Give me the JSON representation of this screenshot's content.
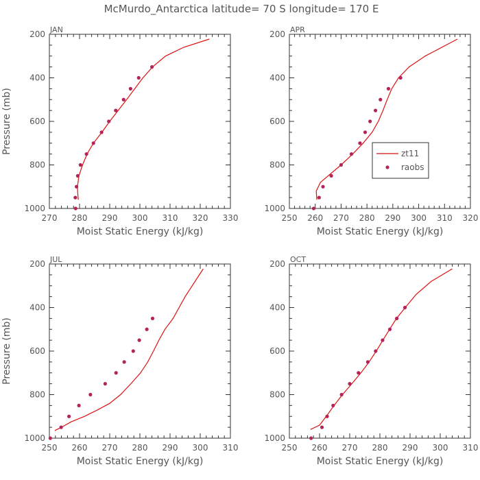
{
  "title": "McMurdo_Antarctica   latitude= 70 S longitude= 170 E",
  "colors": {
    "model_line": "#dd1111",
    "raob_points": "#b3245a",
    "axes": "#333333",
    "text": "#555555"
  },
  "legend": {
    "model": "zt11",
    "obs": "raobs",
    "placement": "right-middle of APR panel"
  },
  "chart_data": [
    {
      "type": "line",
      "panel": "JAN",
      "xlabel": "Moist Static Energy (kJ/kg)",
      "ylabel": "Pressure (mb)",
      "xlim": [
        270,
        330
      ],
      "xticks": [
        270,
        280,
        290,
        300,
        310,
        320,
        330
      ],
      "ylim": [
        1000,
        200
      ],
      "yticks": [
        200,
        400,
        600,
        800,
        1000
      ],
      "series": [
        {
          "name": "zt11",
          "x": [
            279.6,
            279.4,
            279.3,
            279.8,
            281.0,
            282.5,
            284.6,
            287.4,
            290.0,
            292.8,
            295.6,
            298.3,
            301.0,
            304.2,
            308.5,
            314.5,
            323.0
          ],
          "y": [
            960,
            930,
            900,
            850,
            800,
            750,
            700,
            650,
            600,
            550,
            500,
            450,
            400,
            350,
            300,
            260,
            222
          ]
        },
        {
          "name": "raobs",
          "x": [
            278.7,
            278.6,
            279.0,
            279.4,
            280.3,
            282.3,
            284.6,
            287.3,
            289.7,
            292.0,
            294.6,
            296.9,
            299.6,
            304.0
          ],
          "y": [
            1000,
            950,
            900,
            850,
            800,
            750,
            700,
            650,
            600,
            550,
            500,
            450,
            400,
            350
          ]
        }
      ]
    },
    {
      "type": "line",
      "panel": "APR",
      "xlabel": "Moist Static Energy (kJ/kg)",
      "ylabel": "",
      "xlim": [
        250,
        320
      ],
      "xticks": [
        250,
        260,
        270,
        280,
        290,
        300,
        310,
        320
      ],
      "ylim": [
        1000,
        200
      ],
      "yticks": [
        200,
        400,
        600,
        800,
        1000
      ],
      "series": [
        {
          "name": "zt11",
          "x": [
            260.6,
            260.4,
            262.0,
            265.0,
            270.0,
            274.5,
            278.5,
            282.0,
            284.4,
            286.2,
            287.8,
            289.6,
            292.2,
            296.3,
            302.5,
            315.0
          ],
          "y": [
            960,
            920,
            880,
            850,
            800,
            750,
            700,
            650,
            600,
            550,
            500,
            450,
            400,
            350,
            300,
            222
          ]
        },
        {
          "name": "raobs",
          "x": [
            259.4,
            261.5,
            263.0,
            266.2,
            270.0,
            274.0,
            277.3,
            279.3,
            281.2,
            283.3,
            285.2,
            288.3,
            293.0
          ],
          "y": [
            1000,
            950,
            900,
            850,
            800,
            750,
            700,
            650,
            600,
            550,
            500,
            450,
            400
          ]
        }
      ]
    },
    {
      "type": "line",
      "panel": "JUL",
      "xlabel": "Moist Static Energy (kJ/kg)",
      "ylabel": "Pressure (mb)",
      "xlim": [
        250,
        310
      ],
      "xticks": [
        250,
        260,
        270,
        280,
        290,
        300,
        310
      ],
      "ylim": [
        1000,
        200
      ],
      "yticks": [
        200,
        400,
        600,
        800,
        1000
      ],
      "series": [
        {
          "name": "zt11",
          "x": [
            251.8,
            254.0,
            257.2,
            261.6,
            266.0,
            270.0,
            273.6,
            277.0,
            280.2,
            282.6,
            284.5,
            286.3,
            288.3,
            291.0,
            295.0,
            301.0
          ],
          "y": [
            965,
            950,
            925,
            900,
            870,
            840,
            800,
            750,
            700,
            650,
            600,
            550,
            500,
            450,
            350,
            222
          ]
        },
        {
          "name": "raobs",
          "x": [
            250.3,
            253.9,
            256.5,
            259.8,
            263.6,
            268.5,
            272.1,
            274.8,
            277.8,
            279.8,
            282.3,
            284.2
          ],
          "y": [
            1000,
            950,
            900,
            850,
            800,
            750,
            700,
            650,
            600,
            550,
            500,
            450
          ]
        }
      ]
    },
    {
      "type": "line",
      "panel": "OCT",
      "xlabel": "Moist Static Energy (kJ/kg)",
      "ylabel": "",
      "xlim": [
        250,
        310
      ],
      "xticks": [
        250,
        260,
        270,
        280,
        290,
        300,
        310
      ],
      "ylim": [
        1000,
        200
      ],
      "yticks": [
        200,
        400,
        600,
        800,
        1000
      ],
      "series": [
        {
          "name": "zt11",
          "x": [
            257.0,
            260.0,
            262.2,
            264.8,
            267.6,
            270.7,
            273.7,
            276.4,
            278.8,
            281.0,
            283.2,
            285.5,
            288.4,
            292.0,
            297.0,
            304.0
          ],
          "y": [
            960,
            940,
            900,
            850,
            800,
            750,
            700,
            650,
            600,
            550,
            500,
            450,
            400,
            340,
            280,
            222
          ]
        },
        {
          "name": "raobs",
          "x": [
            257.2,
            260.8,
            262.5,
            264.5,
            267.3,
            270.0,
            272.9,
            276.0,
            278.6,
            280.9,
            283.3,
            285.6,
            288.3
          ],
          "y": [
            1000,
            950,
            900,
            850,
            800,
            750,
            700,
            650,
            600,
            550,
            500,
            450,
            400
          ]
        }
      ]
    }
  ]
}
